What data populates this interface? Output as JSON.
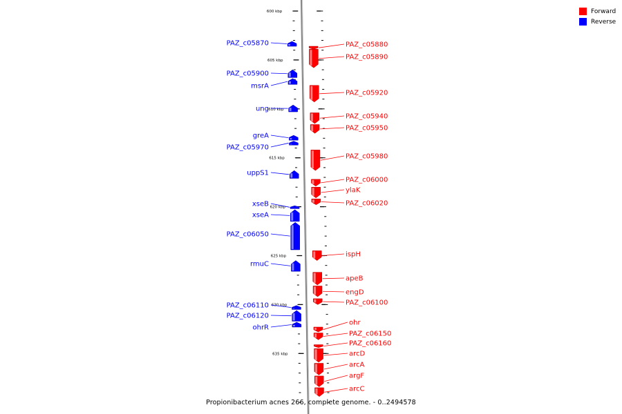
{
  "legend": [
    {
      "label": "Forward",
      "color": "#ff0000"
    },
    {
      "label": "Reverse",
      "color": "#0000ff"
    }
  ],
  "colors": {
    "forward": "#ff0000",
    "reverse": "#0000ff",
    "backbone": "#888888"
  },
  "ruler": {
    "major": [
      {
        "kbp": 600,
        "label": "600 kbp"
      },
      {
        "kbp": 605,
        "label": "605 kbp"
      },
      {
        "kbp": 610,
        "label": "610 kbp"
      },
      {
        "kbp": 615,
        "label": "615 kbp"
      },
      {
        "kbp": 620,
        "label": "620 kbp"
      },
      {
        "kbp": 625,
        "label": "625 kbp"
      },
      {
        "kbp": 630,
        "label": "630 kbp"
      },
      {
        "kbp": 635,
        "label": "635 kbp"
      }
    ]
  },
  "genes_forward": [
    {
      "name": "PAZ_c05880",
      "start": 603.6,
      "end": 603.9
    },
    {
      "name": "PAZ_c05890",
      "start": 603.9,
      "end": 605.8
    },
    {
      "name": "PAZ_c05920",
      "start": 607.6,
      "end": 609.3
    },
    {
      "name": "PAZ_c05940",
      "start": 610.4,
      "end": 611.5
    },
    {
      "name": "PAZ_c05950",
      "start": 611.6,
      "end": 612.5
    },
    {
      "name": "PAZ_c05980",
      "start": 614.2,
      "end": 616.3
    },
    {
      "name": "PAZ_c06000",
      "start": 617.2,
      "end": 617.9
    },
    {
      "name": "ylaK",
      "start": 618.0,
      "end": 619.1
    },
    {
      "name": "PAZ_c06020",
      "start": 619.2,
      "end": 619.8
    },
    {
      "name": "ispH",
      "start": 624.5,
      "end": 625.5
    },
    {
      "name": "apeB",
      "start": 626.7,
      "end": 628.0
    },
    {
      "name": "engD",
      "start": 628.1,
      "end": 629.2
    },
    {
      "name": "PAZ_c06100",
      "start": 629.4,
      "end": 630.0
    },
    {
      "name": "ohr",
      "start": 632.3,
      "end": 632.8
    },
    {
      "name": "PAZ_c06150",
      "start": 632.9,
      "end": 633.6
    },
    {
      "name": "PAZ_c06160",
      "start": 634.1,
      "end": 634.4
    },
    {
      "name": "arcD",
      "start": 634.5,
      "end": 635.9
    },
    {
      "name": "arcA",
      "start": 636.0,
      "end": 637.2
    },
    {
      "name": "argF",
      "start": 637.3,
      "end": 638.4
    },
    {
      "name": "arcC",
      "start": 638.5,
      "end": 639.4
    }
  ],
  "genes_reverse": [
    {
      "name": "PAZ_c05870",
      "start": 603.1,
      "end": 603.6
    },
    {
      "name": "PAZ_c05900",
      "start": 606.0,
      "end": 606.8
    },
    {
      "name": "msrA",
      "start": 606.9,
      "end": 607.5
    },
    {
      "name": "ung",
      "start": 609.6,
      "end": 610.3
    },
    {
      "name": "greA",
      "start": 612.7,
      "end": 613.2
    },
    {
      "name": "PAZ_c05970",
      "start": 613.3,
      "end": 613.7
    },
    {
      "name": "uppS1",
      "start": 616.3,
      "end": 617.1
    },
    {
      "name": "xseB",
      "start": 619.9,
      "end": 620.2
    },
    {
      "name": "xseA",
      "start": 620.3,
      "end": 621.5
    },
    {
      "name": "PAZ_c06050",
      "start": 621.6,
      "end": 624.4
    },
    {
      "name": "rmuC",
      "start": 625.5,
      "end": 626.6
    },
    {
      "name": "PAZ_c06110",
      "start": 630.1,
      "end": 630.5
    },
    {
      "name": "PAZ_c06120",
      "start": 630.6,
      "end": 631.7
    },
    {
      "name": "ohrR",
      "start": 631.8,
      "end": 632.3
    }
  ],
  "caption": "Propionibacterium acnes 266, complete genome. - 0..2494578"
}
